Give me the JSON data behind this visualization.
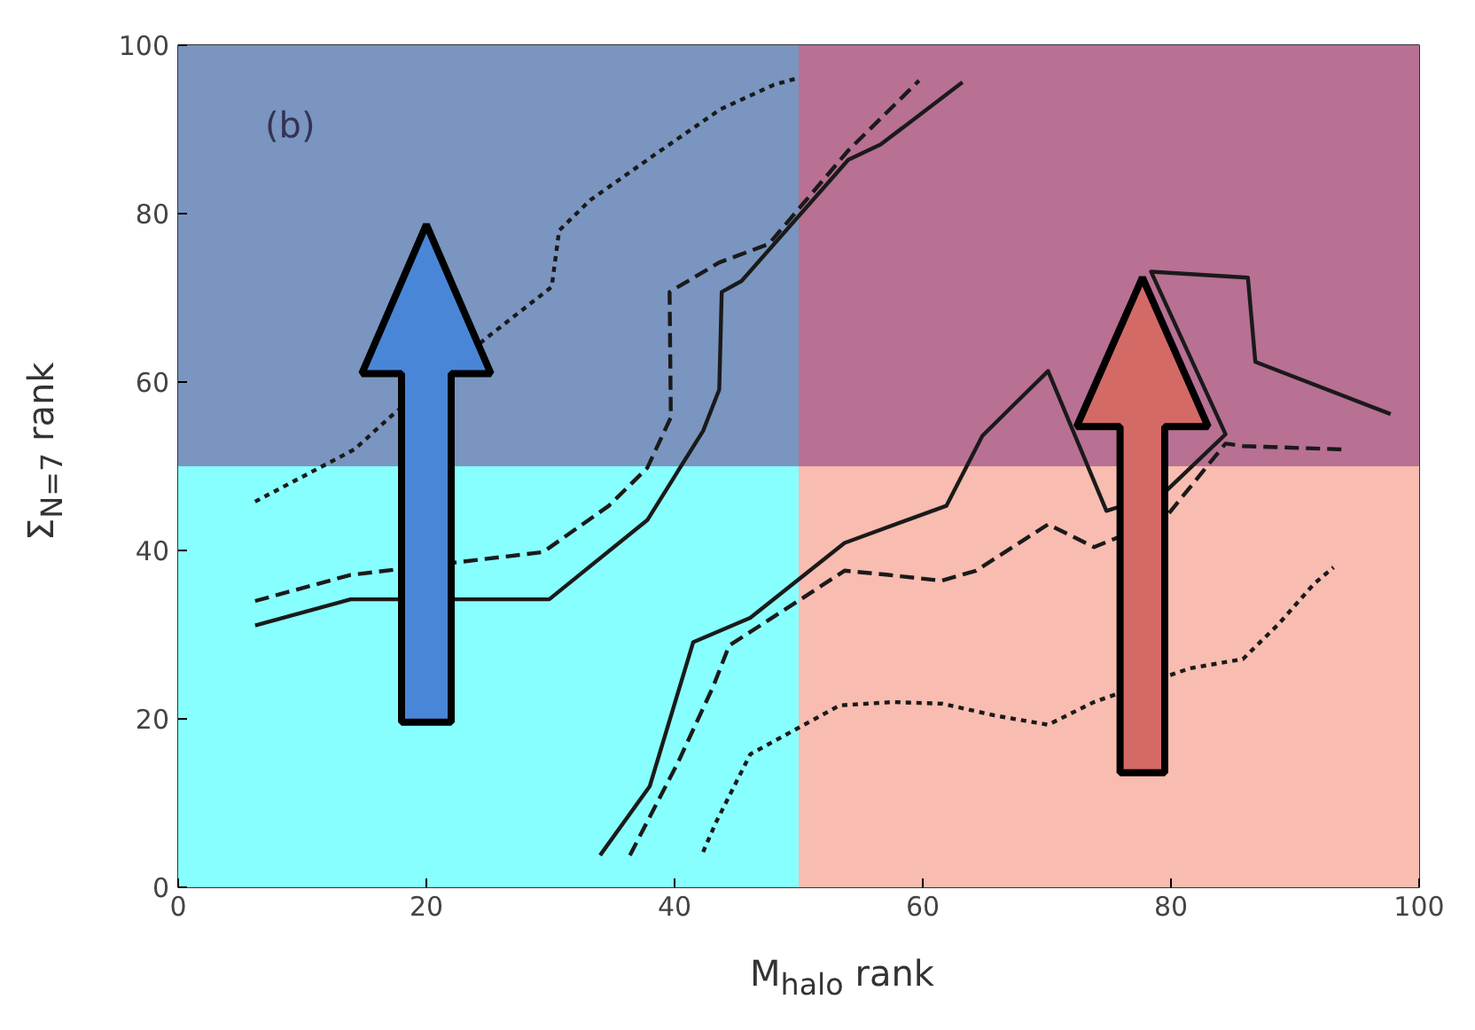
{
  "chart_data": {
    "type": "line",
    "xlabel": "M$_{halo}$ rank",
    "ylabel": "Σ$_{N=7}$ rank",
    "xlim": [
      0,
      100
    ],
    "ylim": [
      0,
      100
    ],
    "xticks": [
      0,
      20,
      40,
      60,
      80,
      100
    ],
    "yticks": [
      0,
      20,
      40,
      60,
      80,
      100
    ],
    "annotations": [
      "(b)"
    ],
    "bands": [
      {
        "axis": "x",
        "from": 0,
        "to": 50,
        "color": "#88ffff"
      },
      {
        "axis": "x",
        "from": 50,
        "to": 100,
        "color": "#f8bcb0"
      },
      {
        "axis": "y",
        "from": 50,
        "to": 100,
        "color": "#6a1470"
      }
    ],
    "series": [
      {
        "color": "#1a1a1a",
        "line_style": "solid",
        "x": [
          6.2,
          13.9,
          29.9,
          37.8,
          42.3,
          43.6,
          43.8,
          45.4,
          54,
          56.6,
          63.2
        ],
        "values": [
          31.1,
          34.2,
          34.2,
          43.6,
          54.2,
          59.1,
          70.7,
          72,
          86.4,
          88.2,
          95.6
        ]
      },
      {
        "color": "#1a1a1a",
        "line_style": "dashed",
        "x": [
          6.2,
          13.9,
          29.4,
          34.7,
          37.8,
          39.7,
          39.6,
          43.6,
          47.6,
          54,
          59.7
        ],
        "values": [
          34,
          37.1,
          39.8,
          45.3,
          49.8,
          55.8,
          70.7,
          74.2,
          76.4,
          87.5,
          95.8
        ]
      },
      {
        "color": "#1a1a1a",
        "line_style": "dotted",
        "x": [
          6.2,
          14.2,
          17.2,
          24.9,
          30.1,
          30.7,
          33.2,
          38.5,
          43.7,
          48,
          49.7
        ],
        "values": [
          45.8,
          52,
          56,
          65.3,
          71.3,
          78,
          81.6,
          87.1,
          92.4,
          95.3,
          96
        ]
      },
      {
        "color": "#1a1a1a",
        "line_style": "solid",
        "x": [
          34,
          38,
          41.5,
          46.1,
          53.7,
          61.9,
          64.8,
          67.2,
          70.1,
          74.8,
          79.5,
          84.4,
          78.4,
          86.2,
          86.8,
          97.7
        ],
        "values": [
          3.8,
          12,
          29.1,
          32,
          40.9,
          45.3,
          53.6,
          57.1,
          61.3,
          44.7,
          46.9,
          53.8,
          73.1,
          72.4,
          62.4,
          56.2
        ]
      },
      {
        "color": "#1a1a1a",
        "line_style": "dashed",
        "x": [
          36.4,
          40.3,
          43.1,
          44.4,
          50.9,
          53.7,
          57.2,
          61.5,
          64.3,
          70.1,
          73.8,
          79.5,
          84.4,
          85.8,
          93.8
        ],
        "values": [
          3.8,
          14.9,
          23.8,
          28.7,
          34.9,
          37.6,
          37.1,
          36.4,
          37.6,
          43.1,
          40.4,
          43.8,
          52.7,
          52.4,
          52
        ]
      },
      {
        "color": "#1a1a1a",
        "line_style": "dotted",
        "x": [
          42.3,
          43.3,
          46.1,
          49.7,
          53.3,
          57.6,
          61.6,
          65.8,
          70.1,
          73.8,
          81.5,
          85.8,
          88.7,
          91.5,
          93.1
        ],
        "values": [
          4.2,
          7.6,
          15.8,
          18.7,
          21.6,
          22,
          21.8,
          20.4,
          19.3,
          22,
          26,
          27.1,
          31.3,
          36,
          38
        ]
      }
    ]
  }
}
